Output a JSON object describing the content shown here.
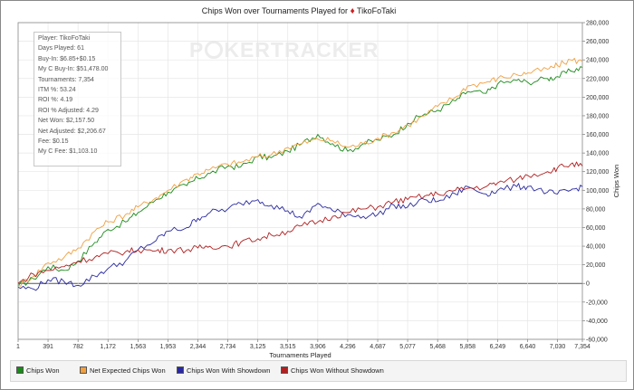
{
  "title": "Chips Won over Tournaments Played for",
  "player_name": "TikoFoTaki",
  "watermark": "POKERTRACKER",
  "stats": [
    "Player: TikoFoTaki",
    "Days Played: 61",
    "Buy-In: $6.85+$0.15",
    "My C Buy-In: $51,478.00",
    "Tournaments: 7,354",
    "ITM %: 53.24",
    "ROI %: 4.19",
    "ROI % Adjusted: 4.29",
    "Net Won: $2,157.50",
    "Net Adjusted: $2,206.67",
    "Fee: $0.15",
    "My C Fee: $1,103.10"
  ],
  "colors": {
    "chips_won": "#1a8a1a",
    "net_expected": "#f0a040",
    "with_showdown": "#2828a0",
    "without_showdown": "#b02020",
    "grid": "#e6e6e6",
    "zero_line": "#555555"
  },
  "chart_data": {
    "type": "line",
    "title": "Chips Won over Tournaments Played for TikoFoTaki",
    "xlabel": "Tournaments Played",
    "ylabel": "Chips Won",
    "xlim": [
      1,
      7354
    ],
    "ylim": [
      -60000,
      280000
    ],
    "x_ticks": [
      "1",
      "391",
      "782",
      "1,172",
      "1,563",
      "1,953",
      "2,344",
      "2,734",
      "3,125",
      "3,515",
      "3,906",
      "4,296",
      "4,687",
      "5,077",
      "5,468",
      "5,858",
      "6,249",
      "6,640",
      "7,030",
      "7,354"
    ],
    "y_ticks": [
      "-60,000",
      "-40,000",
      "-20,000",
      "0",
      "20,000",
      "40,000",
      "60,000",
      "80,000",
      "100,000",
      "120,000",
      "140,000",
      "160,000",
      "180,000",
      "200,000",
      "220,000",
      "240,000",
      "260,000",
      "280,000"
    ],
    "grid": true,
    "legend_position": "bottom",
    "series": [
      {
        "name": "Chips Won",
        "color": "#1a8a1a",
        "x": [
          1,
          200,
          391,
          600,
          782,
          1000,
          1172,
          1400,
          1563,
          1800,
          1953,
          2200,
          2344,
          2500,
          2734,
          2900,
          3125,
          3300,
          3515,
          3700,
          3906,
          4100,
          4296,
          4500,
          4687,
          4900,
          5077,
          5300,
          5468,
          5700,
          5858,
          6100,
          6249,
          6500,
          6640,
          6900,
          7030,
          7200,
          7354
        ],
        "y": [
          -3000,
          5000,
          18000,
          14000,
          24000,
          44000,
          58000,
          66000,
          76000,
          90000,
          98000,
          105000,
          113000,
          118000,
          126000,
          125000,
          136000,
          135000,
          142000,
          150000,
          160000,
          150000,
          142000,
          150000,
          154000,
          160000,
          172000,
          182000,
          186000,
          196000,
          206000,
          204000,
          214000,
          218000,
          216000,
          220000,
          222000,
          228000,
          232000
        ]
      },
      {
        "name": "Net Expected Chips Won",
        "color": "#f0a040",
        "x": [
          1,
          200,
          391,
          600,
          782,
          1000,
          1172,
          1400,
          1563,
          1800,
          1953,
          2200,
          2344,
          2500,
          2734,
          2900,
          3125,
          3300,
          3515,
          3700,
          3906,
          4100,
          4296,
          4500,
          4687,
          4900,
          5077,
          5300,
          5468,
          5700,
          5858,
          6100,
          6249,
          6500,
          6640,
          6900,
          7030,
          7200,
          7354
        ],
        "y": [
          -2000,
          8000,
          22000,
          28000,
          38000,
          56000,
          66000,
          74000,
          82000,
          92000,
          100000,
          112000,
          118000,
          122000,
          128000,
          130000,
          136000,
          138000,
          146000,
          150000,
          155000,
          153000,
          146000,
          150000,
          156000,
          162000,
          170000,
          180000,
          190000,
          200000,
          212000,
          216000,
          220000,
          224000,
          226000,
          230000,
          234000,
          240000,
          238000
        ]
      },
      {
        "name": "Chips Won With Showdown",
        "color": "#2828a0",
        "x": [
          1,
          200,
          391,
          600,
          782,
          1000,
          1172,
          1400,
          1563,
          1800,
          1953,
          2200,
          2344,
          2500,
          2734,
          2900,
          3125,
          3300,
          3515,
          3700,
          3906,
          4100,
          4296,
          4500,
          4687,
          4900,
          5077,
          5300,
          5468,
          5700,
          5858,
          6100,
          6249,
          6500,
          6640,
          6900,
          7030,
          7200,
          7354
        ],
        "y": [
          -4000,
          -6000,
          4000,
          2000,
          -2000,
          8000,
          16000,
          24000,
          36000,
          46000,
          56000,
          60000,
          70000,
          76000,
          80000,
          86000,
          90000,
          84000,
          78000,
          70000,
          86000,
          78000,
          74000,
          72000,
          74000,
          84000,
          82000,
          90000,
          88000,
          96000,
          104000,
          96000,
          100000,
          104000,
          104000,
          98000,
          96000,
          100000,
          104000
        ]
      },
      {
        "name": "Chips Won Without Showdown",
        "color": "#b02020",
        "x": [
          1,
          200,
          391,
          600,
          782,
          1000,
          1172,
          1400,
          1563,
          1800,
          1953,
          2200,
          2344,
          2500,
          2734,
          2900,
          3125,
          3300,
          3515,
          3700,
          3906,
          4100,
          4296,
          4500,
          4687,
          4900,
          5077,
          5300,
          5468,
          5700,
          5858,
          6100,
          6249,
          6500,
          6640,
          6900,
          7030,
          7200,
          7354
        ],
        "y": [
          0,
          10000,
          14000,
          18000,
          24000,
          28000,
          32000,
          34000,
          36000,
          35000,
          36000,
          36000,
          38000,
          40000,
          40000,
          44000,
          48000,
          52000,
          56000,
          62000,
          66000,
          72000,
          76000,
          80000,
          82000,
          88000,
          90000,
          94000,
          96000,
          100000,
          102000,
          104000,
          108000,
          112000,
          116000,
          120000,
          124000,
          128000,
          126000
        ]
      }
    ]
  }
}
